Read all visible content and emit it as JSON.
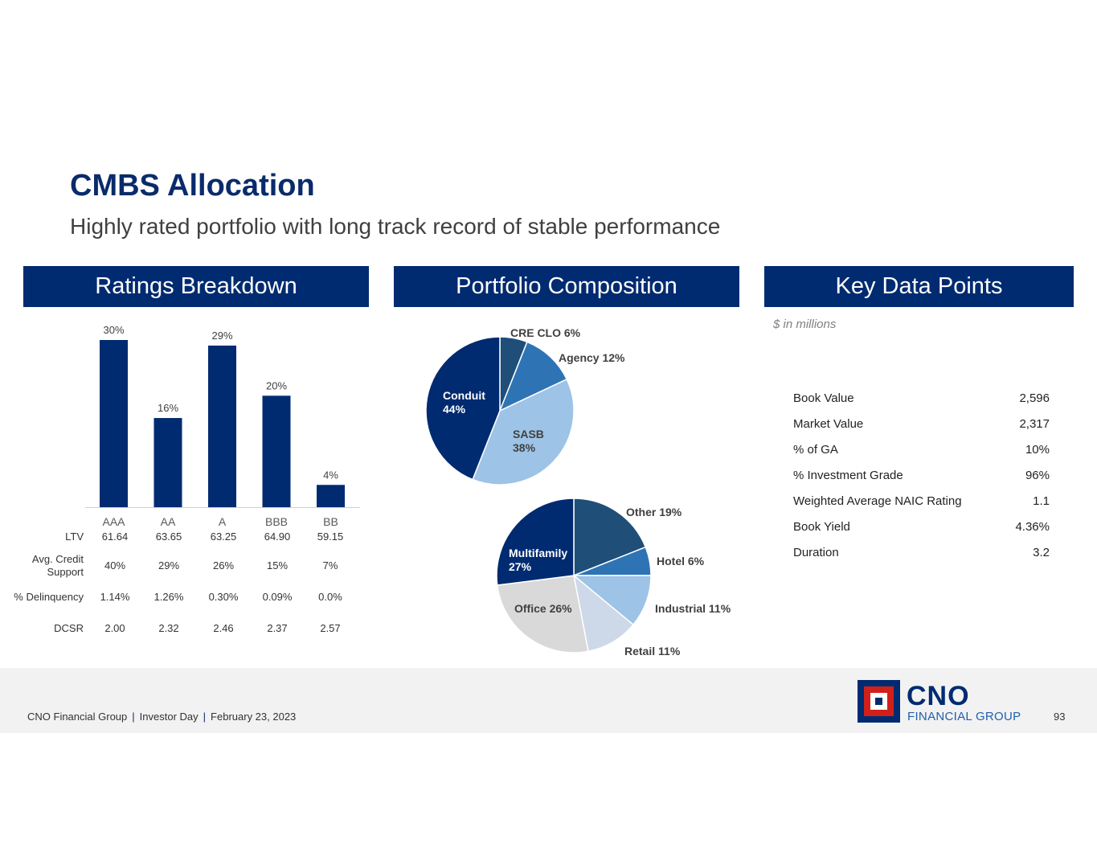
{
  "header": {
    "title": "CMBS Allocation",
    "subtitle": "Highly rated portfolio with long track record of stable performance"
  },
  "panels": {
    "ratings": "Ratings Breakdown",
    "composition": "Portfolio Composition",
    "key_data": "Key Data Points"
  },
  "chart_data": [
    {
      "type": "bar",
      "title": "Ratings Breakdown",
      "categories": [
        "AAA",
        "AA",
        "A",
        "BBB",
        "BB"
      ],
      "values": [
        30,
        16,
        29,
        20,
        4
      ],
      "data_labels": [
        "30%",
        "16%",
        "29%",
        "20%",
        "4%"
      ],
      "ylim": [
        0,
        30
      ],
      "grid": false,
      "color": "#002b70"
    },
    {
      "type": "pie",
      "slices": [
        {
          "label": "CRE CLO",
          "value": 6,
          "text": "CRE CLO 6%",
          "color": "#1f4e79"
        },
        {
          "label": "Agency",
          "value": 12,
          "text": "Agency 12%",
          "color": "#2e74b5"
        },
        {
          "label": "SASB",
          "value": 38,
          "text": "SASB\n38%",
          "color": "#9dc3e6"
        },
        {
          "label": "Conduit",
          "value": 44,
          "text": "Conduit\n44%",
          "color": "#002b70"
        }
      ]
    },
    {
      "type": "pie",
      "slices": [
        {
          "label": "Other",
          "value": 19,
          "text": "Other 19%",
          "color": "#1f4e79"
        },
        {
          "label": "Hotel",
          "value": 6,
          "text": "Hotel 6%",
          "color": "#2e74b5"
        },
        {
          "label": "Industrial",
          "value": 11,
          "text": "Industrial 11%",
          "color": "#9dc3e6"
        },
        {
          "label": "Retail",
          "value": 11,
          "text": "Retail 11%",
          "color": "#cdd8e8"
        },
        {
          "label": "Office",
          "value": 26,
          "text": "Office 26%",
          "color": "#d9d9d9"
        },
        {
          "label": "Multifamily",
          "value": 27,
          "text": "Multifamily\n27%",
          "color": "#002b70"
        }
      ]
    }
  ],
  "rating_metrics": [
    {
      "label": "LTV",
      "values": [
        "61.64",
        "63.65",
        "63.25",
        "64.90",
        "59.15"
      ]
    },
    {
      "label": "Avg. Credit Support",
      "values": [
        "40%",
        "29%",
        "26%",
        "15%",
        "7%"
      ]
    },
    {
      "label": "% Delinquency",
      "values": [
        "1.14%",
        "1.26%",
        "0.30%",
        "0.09%",
        "0.0%"
      ]
    },
    {
      "label": "DCSR",
      "values": [
        "2.00",
        "2.32",
        "2.46",
        "2.37",
        "2.57"
      ]
    }
  ],
  "key_data": {
    "units": "$ in millions",
    "rows": [
      {
        "label": "Book Value",
        "value": "2,596"
      },
      {
        "label": "Market Value",
        "value": "2,317"
      },
      {
        "label": "% of GA",
        "value": "10%"
      },
      {
        "label": "% Investment Grade",
        "value": "96%"
      },
      {
        "label": "Weighted Average NAIC Rating",
        "value": "1.1"
      },
      {
        "label": "Book Yield",
        "value": "4.36%"
      },
      {
        "label": "Duration",
        "value": "3.2"
      }
    ]
  },
  "footer": {
    "company": "CNO Financial Group",
    "event": "Investor Day",
    "date": "February 23, 2023",
    "page": "93",
    "logo_name": "CNO",
    "logo_sub": "FINANCIAL GROUP"
  }
}
